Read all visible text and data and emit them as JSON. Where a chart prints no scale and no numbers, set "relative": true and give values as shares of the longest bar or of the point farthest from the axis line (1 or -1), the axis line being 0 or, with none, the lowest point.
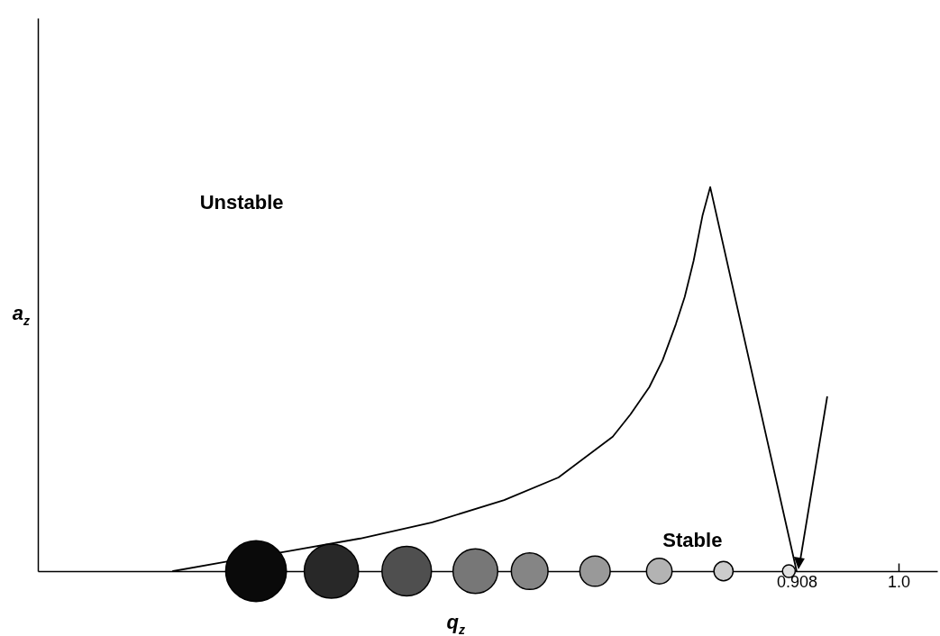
{
  "chart_data": {
    "type": "line",
    "relative": true,
    "xlabel": "q$_{z}$",
    "ylabel": "a$_{z}$",
    "xlim": [
      0.223,
      1.035
    ],
    "xticks": [
      0.908,
      {
        "value": 1,
        "label": "1.0"
      }
    ],
    "annotations": [
      "Unstable",
      "Stable"
    ],
    "series": [
      {
        "type": "line",
        "color": "#000000",
        "x": [
          0.345,
          0.4,
          0.449,
          0.514,
          0.579,
          0.644,
          0.693,
          0.742,
          0.758,
          0.775,
          0.787,
          0.799,
          0.807,
          0.815,
          0.823,
          0.83,
          0.908
        ],
        "values": [
          0,
          0.028,
          0.052,
          0.085,
          0.127,
          0.185,
          0.244,
          0.35,
          0.408,
          0.479,
          0.549,
          0.643,
          0.714,
          0.808,
          0.925,
          1,
          0
        ]
      },
      {
        "type": "bubble",
        "x": [
          0.42,
          0.488,
          0.556,
          0.618,
          0.667,
          0.726,
          0.784,
          0.842,
          0.901
        ],
        "values": [
          0,
          0,
          0,
          0,
          0,
          0,
          0,
          0,
          0
        ],
        "sizes": [
          1,
          0.8,
          0.665,
          0.543,
          0.366,
          0.25,
          0.177,
          0.1,
          0.044
        ],
        "colors": [
          "#0a0a0a",
          "#282828",
          "#4f4f4f",
          "#777777",
          "#858585",
          "#999999",
          "#b3b3b3",
          "#cccccc",
          "#e0e0e0"
        ]
      }
    ]
  }
}
